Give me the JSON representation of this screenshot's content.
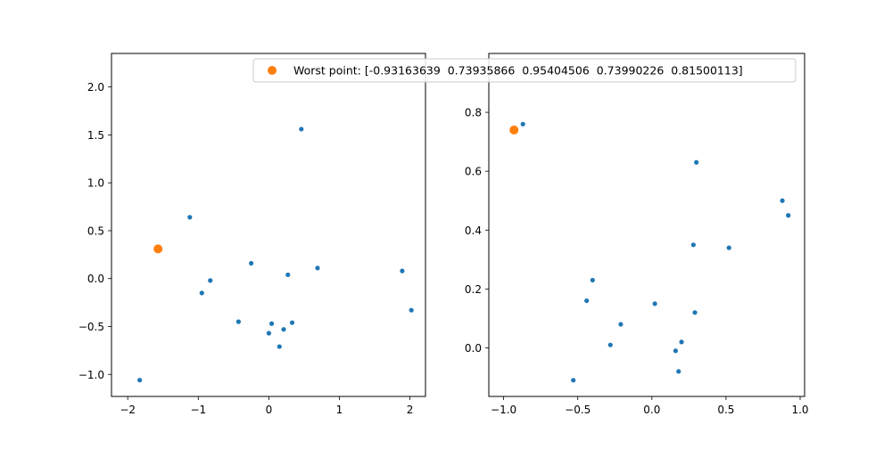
{
  "chart_data": [
    {
      "type": "scatter",
      "title": "",
      "xlabel": "",
      "ylabel": "",
      "xlim": [
        -2.23,
        2.22
      ],
      "ylim": [
        -1.23,
        2.35
      ],
      "xticks": [
        -2,
        -1,
        0,
        1,
        2
      ],
      "yticks": [
        -1.0,
        -0.5,
        0.0,
        0.5,
        1.0,
        1.5,
        2.0
      ],
      "xtick_labels": [
        "−2",
        "−1",
        "0",
        "1",
        "2"
      ],
      "ytick_labels": [
        "−1.0",
        "−0.5",
        "0.0",
        "0.5",
        "1.0",
        "1.5",
        "2.0"
      ],
      "grid": false,
      "series": [
        {
          "color": "#1f77b4",
          "marker_size": "small",
          "x": [
            -1.83,
            -1.12,
            -0.95,
            -0.83,
            -0.43,
            -0.25,
            0.0,
            0.04,
            0.15,
            0.21,
            0.27,
            0.33,
            0.46,
            0.69,
            1.89,
            2.02
          ],
          "y": [
            -1.06,
            0.64,
            -0.15,
            -0.02,
            -0.45,
            0.16,
            -0.57,
            -0.47,
            -0.71,
            -0.53,
            0.04,
            -0.46,
            1.56,
            0.11,
            0.08,
            -0.33
          ]
        },
        {
          "name": "Worst point: [-0.93163639  0.73935866  0.95404506  0.73990226  0.81500113]",
          "color": "#ff7f0e",
          "marker_size": "large",
          "x": [
            -1.57
          ],
          "y": [
            0.31
          ]
        }
      ]
    },
    {
      "type": "scatter",
      "title": "",
      "xlabel": "",
      "ylabel": "",
      "xlim": [
        -1.1,
        1.03
      ],
      "ylim": [
        -0.165,
        1.0
      ],
      "xticks": [
        -1.0,
        -0.5,
        0.0,
        0.5,
        1.0
      ],
      "yticks": [
        0.0,
        0.2,
        0.4,
        0.6,
        0.8
      ],
      "xtick_labels": [
        "−1.0",
        "−0.5",
        "0.0",
        "0.5",
        "1.0"
      ],
      "ytick_labels": [
        "0.0",
        "0.2",
        "0.4",
        "0.6",
        "0.8"
      ],
      "grid": false,
      "series": [
        {
          "color": "#1f77b4",
          "marker_size": "small",
          "x": [
            -0.87,
            -0.53,
            -0.44,
            -0.4,
            -0.28,
            -0.21,
            0.02,
            0.16,
            0.18,
            0.2,
            0.28,
            0.29,
            0.3,
            0.52,
            0.88,
            0.92
          ],
          "y": [
            0.76,
            -0.11,
            0.16,
            0.23,
            0.01,
            0.08,
            0.15,
            -0.01,
            -0.08,
            0.02,
            0.35,
            0.12,
            0.63,
            0.34,
            0.5,
            0.45
          ]
        },
        {
          "name": "Worst point: [-0.93163639  0.73935866  0.95404506  0.73990226  0.81500113]",
          "color": "#ff7f0e",
          "marker_size": "large",
          "x": [
            -0.93
          ],
          "y": [
            0.74
          ]
        }
      ]
    }
  ],
  "legend": {
    "placement": "top-right of left plot, overlapping right plot",
    "label": "Worst point: [-0.93163639  0.73935866  0.95404506  0.73990226  0.81500113]",
    "marker_color": "#ff7f0e"
  }
}
